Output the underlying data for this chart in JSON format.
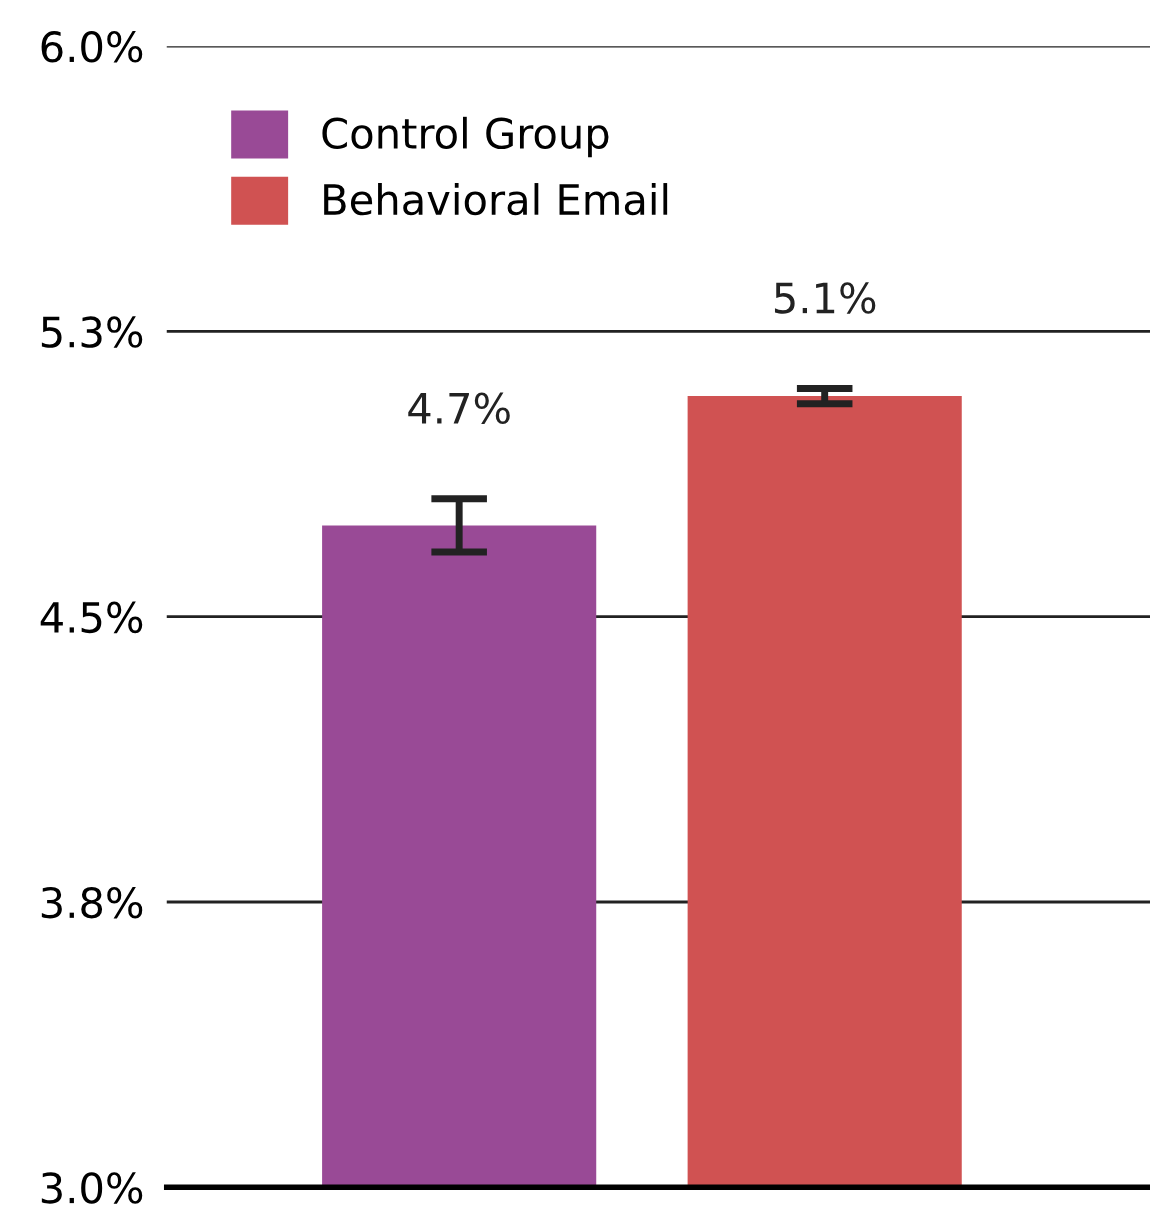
{
  "chart_data": {
    "type": "bar",
    "categories": [
      null,
      null
    ],
    "series": [
      {
        "name": "Control Group",
        "color": "#994a96",
        "values": [
          4.74,
          null
        ],
        "errors": [
          0.07,
          null
        ],
        "value_labels": [
          "4.7%",
          null
        ]
      },
      {
        "name": "Behavioral Email",
        "color": "#d05252",
        "values": [
          null,
          5.08
        ],
        "errors": [
          null,
          0.02
        ],
        "value_labels": [
          null,
          "5.1%"
        ]
      }
    ],
    "ylim": [
      3.0,
      6.0
    ],
    "yticks": [
      {
        "value": 3.0,
        "label": "3.0%"
      },
      {
        "value": 3.75,
        "label": "3.8%"
      },
      {
        "value": 4.5,
        "label": "4.5%"
      },
      {
        "value": 5.25,
        "label": "5.3%"
      },
      {
        "value": 6.0,
        "label": "6.0%"
      }
    ],
    "grid": "y",
    "legend": "top left",
    "tick_labels": "y"
  }
}
